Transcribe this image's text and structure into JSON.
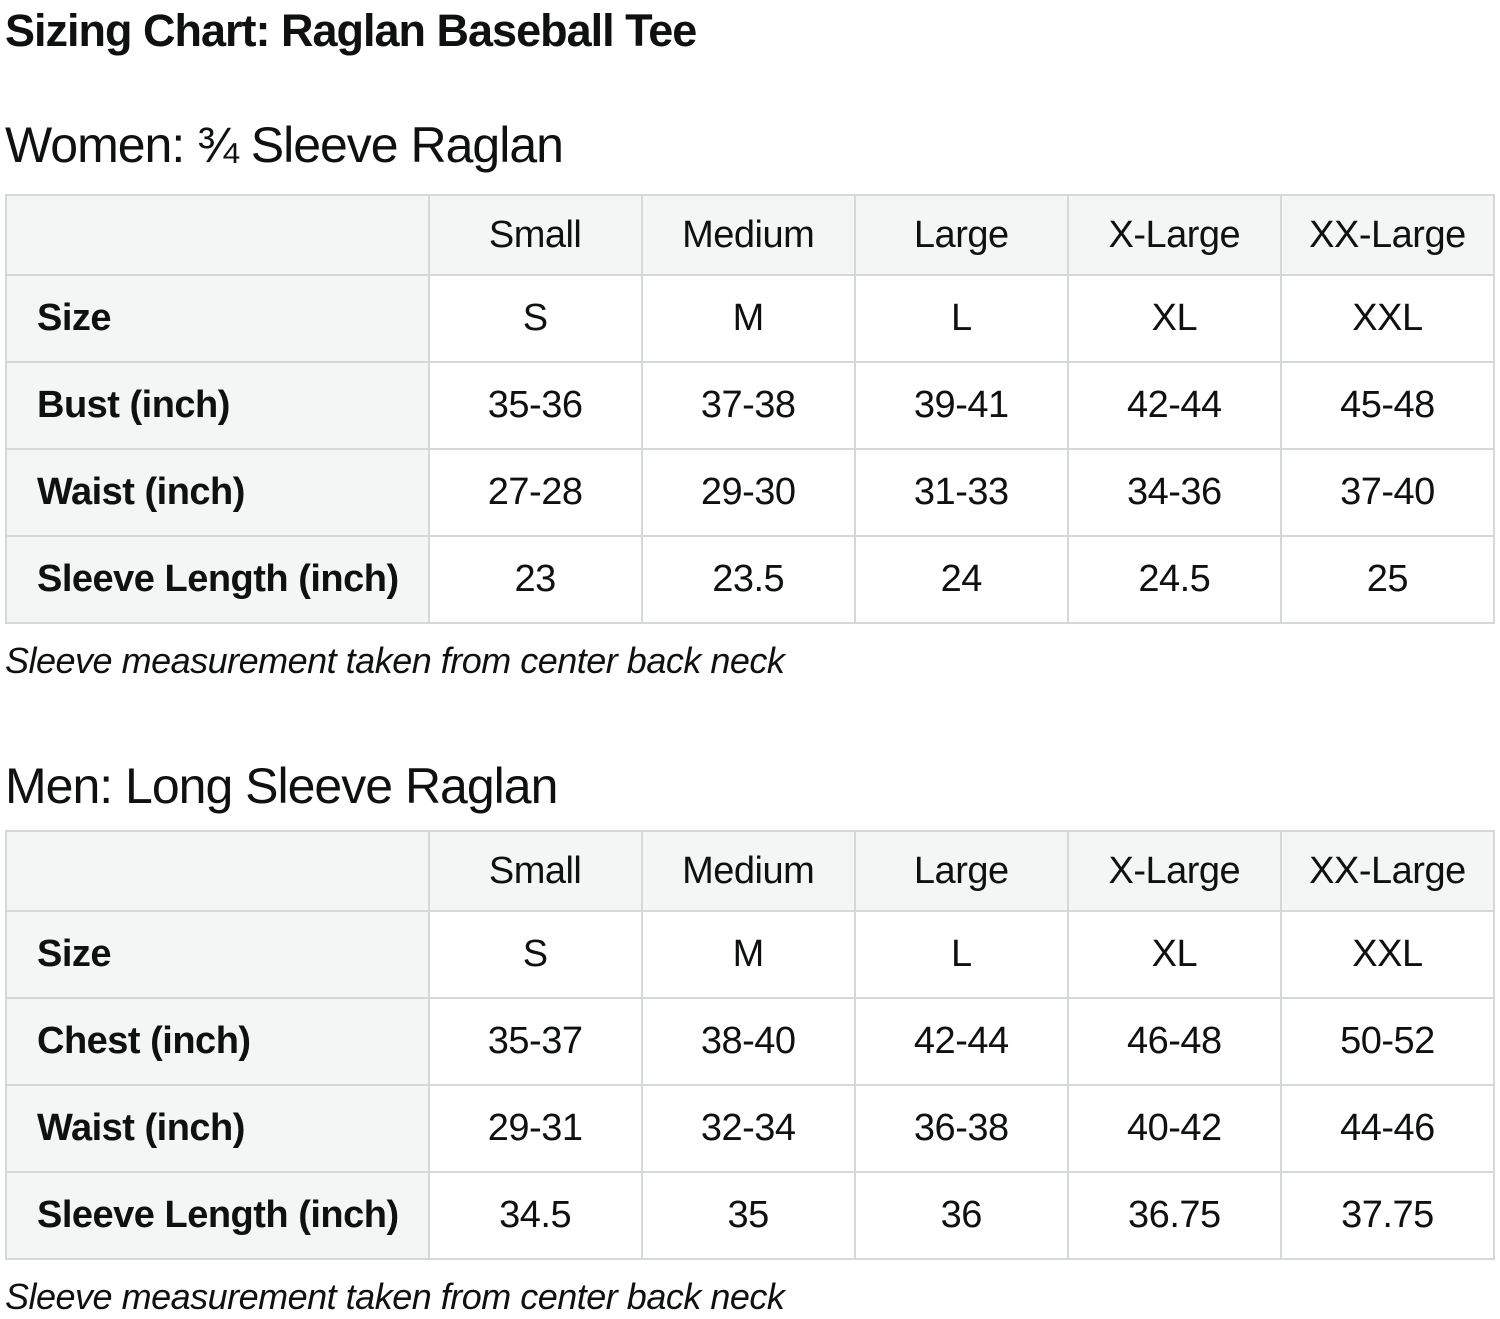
{
  "page_title": "Sizing Chart: Raglan Baseball Tee",
  "colors": {
    "text": "#0f1111",
    "table_border": "#d4d8d8",
    "header_bg": "#f4f5f5"
  },
  "sections": [
    {
      "heading": "Women: ¾ Sleeve Raglan",
      "note": "Sleeve measurement taken from center back neck",
      "table": {
        "columns": [
          "",
          "Small",
          "Medium",
          "Large",
          "X-Large",
          "XX-Large"
        ],
        "rows": [
          {
            "label": "Size",
            "values": [
              "S",
              "M",
              "L",
              "XL",
              "XXL"
            ]
          },
          {
            "label": "Bust (inch)",
            "values": [
              "35-36",
              "37-38",
              "39-41",
              "42-44",
              "45-48"
            ]
          },
          {
            "label": "Waist (inch)",
            "values": [
              "27-28",
              "29-30",
              "31-33",
              "34-36",
              "37-40"
            ]
          },
          {
            "label": "Sleeve Length (inch)",
            "values": [
              "23",
              "23.5",
              "24",
              "24.5",
              "25"
            ]
          }
        ]
      }
    },
    {
      "heading": "Men: Long Sleeve Raglan",
      "note": "Sleeve measurement taken from center back neck",
      "table": {
        "columns": [
          "",
          "Small",
          "Medium",
          "Large",
          "X-Large",
          "XX-Large"
        ],
        "rows": [
          {
            "label": "Size",
            "values": [
              "S",
              "M",
              "L",
              "XL",
              "XXL"
            ]
          },
          {
            "label": "Chest (inch)",
            "values": [
              "35-37",
              "38-40",
              "42-44",
              "46-48",
              "50-52"
            ]
          },
          {
            "label": "Waist (inch)",
            "values": [
              "29-31",
              "32-34",
              "36-38",
              "40-42",
              "44-46"
            ]
          },
          {
            "label": "Sleeve Length (inch)",
            "values": [
              "34.5",
              "35",
              "36",
              "36.75",
              "37.75"
            ]
          }
        ]
      }
    }
  ]
}
